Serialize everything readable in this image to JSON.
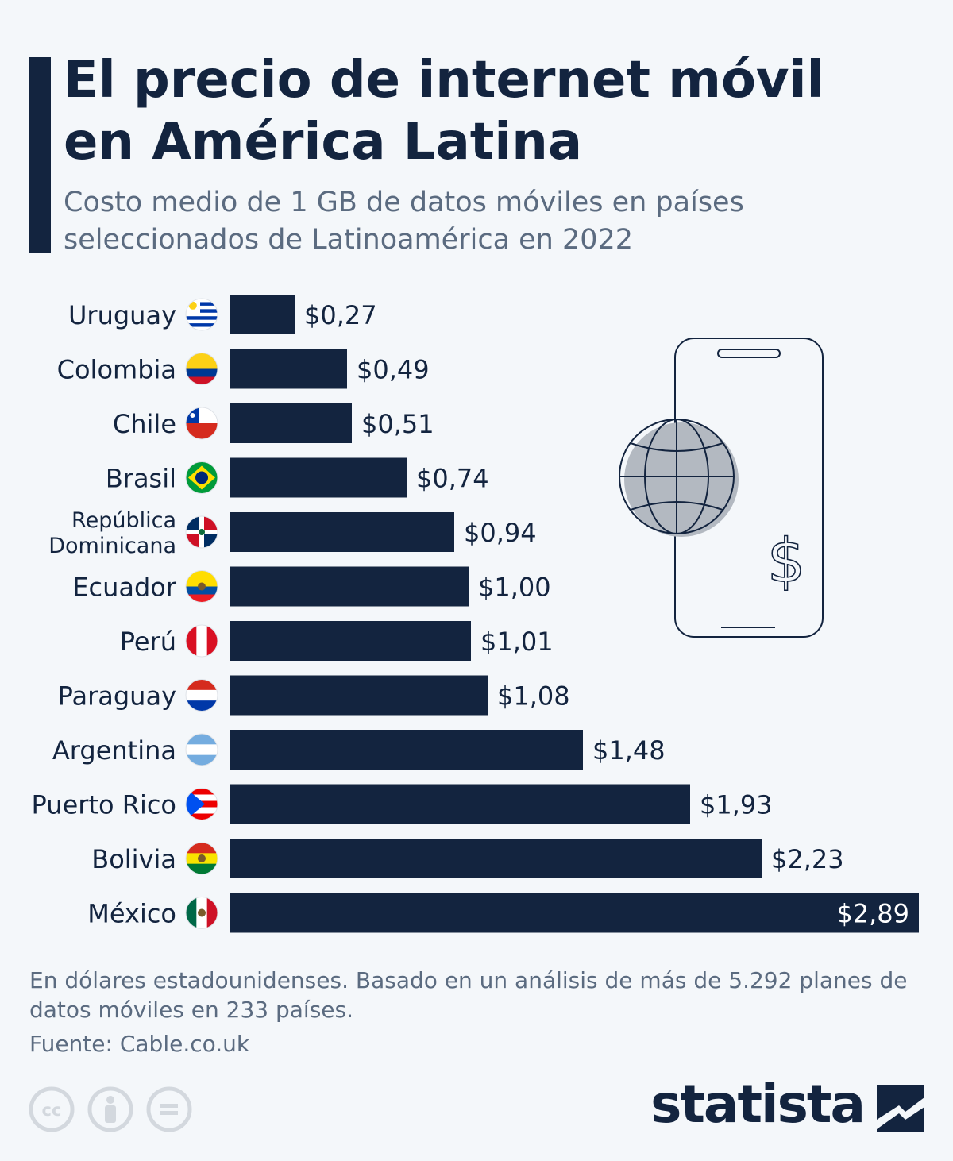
{
  "header": {
    "title": "El precio de internet móvil\nen América Latina",
    "subtitle": "Costo medio de 1 GB de datos móviles en países\nseleccionados de Latinoamérica en 2022"
  },
  "chart_data": {
    "type": "bar",
    "orientation": "horizontal",
    "categories": [
      "Uruguay",
      "Colombia",
      "Chile",
      "Brasil",
      "República Dominicana",
      "Ecuador",
      "Perú",
      "Paraguay",
      "Argentina",
      "Puerto Rico",
      "Bolivia",
      "México"
    ],
    "values": [
      0.27,
      0.49,
      0.51,
      0.74,
      0.94,
      1.0,
      1.01,
      1.08,
      1.48,
      1.93,
      2.23,
      2.89
    ],
    "value_labels": [
      "$0,27",
      "$0,49",
      "$0,51",
      "$0,74",
      "$0,94",
      "$1,00",
      "$1,01",
      "$1,08",
      "$1,48",
      "$1,93",
      "$2,23",
      "$2,89"
    ],
    "category_display": [
      [
        "Uruguay"
      ],
      [
        "Colombia"
      ],
      [
        "Chile"
      ],
      [
        "Brasil"
      ],
      [
        "República",
        "Dominicana"
      ],
      [
        "Ecuador"
      ],
      [
        "Perú"
      ],
      [
        "Paraguay"
      ],
      [
        "Argentina"
      ],
      [
        "Puerto Rico"
      ],
      [
        "Bolivia"
      ],
      [
        "México"
      ]
    ],
    "flag_icons": [
      "uruguay-flag-icon",
      "colombia-flag-icon",
      "chile-flag-icon",
      "brasil-flag-icon",
      "republica-dominicana-flag-icon",
      "ecuador-flag-icon",
      "peru-flag-icon",
      "paraguay-flag-icon",
      "argentina-flag-icon",
      "puerto-rico-flag-icon",
      "bolivia-flag-icon",
      "mexico-flag-icon"
    ],
    "xlim": [
      0,
      2.89
    ],
    "grid": false,
    "bar_color": "#13243f"
  },
  "footer": {
    "note": "En dólares estadounidenses. Basado en un análisis de más de 5.292 planes de datos móviles en 233 países.",
    "source": "Fuente: Cable.co.uk",
    "brand": "statista",
    "license_icons": [
      "cc-icon",
      "attribution-icon",
      "no-derivatives-icon"
    ]
  },
  "illustration": {
    "icons": [
      "smartphone-icon",
      "globe-icon",
      "dollar-icon"
    ],
    "dollar_symbol": "$"
  },
  "colors": {
    "background": "#f4f7fa",
    "primary": "#13243f",
    "muted_text": "#5b6b80",
    "globe_fill": "#b3b9c1"
  }
}
